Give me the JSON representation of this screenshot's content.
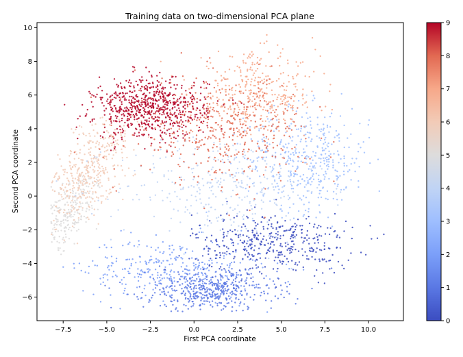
{
  "chart_data": {
    "type": "scatter",
    "title": "Training data on two-dimensional PCA plane",
    "xlabel": "First PCA coordinate",
    "ylabel": "Second PCA coordinate",
    "xlim": [
      -9.0,
      12.0
    ],
    "ylim": [
      -7.4,
      10.3
    ],
    "x_ticks": [
      -7.5,
      -5.0,
      -2.5,
      0.0,
      2.5,
      5.0,
      7.5,
      10.0
    ],
    "x_tick_labels": [
      "−7.5",
      "−5.0",
      "−2.5",
      "0.0",
      "2.5",
      "5.0",
      "7.5",
      "10.0"
    ],
    "y_ticks": [
      -6,
      -4,
      -2,
      0,
      2,
      4,
      6,
      8,
      10
    ],
    "y_tick_labels": [
      "−6",
      "−4",
      "−2",
      "0",
      "2",
      "4",
      "6",
      "8",
      "10"
    ],
    "grid": false,
    "colormap": "coolwarm",
    "colorbar": {
      "range": [
        0,
        9
      ],
      "ticks": [
        0,
        1,
        2,
        3,
        4,
        5,
        6,
        7,
        8,
        9
      ],
      "tick_labels": [
        "0",
        "1",
        "2",
        "3",
        "4",
        "5",
        "6",
        "7",
        "8",
        "9"
      ]
    },
    "clusters": [
      {
        "label": 0,
        "center": [
          4.5,
          -2.8
        ],
        "spread": [
          2.3,
          0.9
        ],
        "share": 0.1
      },
      {
        "label": 1,
        "center": [
          1.0,
          -5.6
        ],
        "spread": [
          1.9,
          0.6
        ],
        "share": 0.11
      },
      {
        "label": 2,
        "center": [
          -1.2,
          -4.3
        ],
        "spread": [
          2.6,
          0.9
        ],
        "share": 0.08
      },
      {
        "label": 3,
        "center": [
          6.5,
          2.2
        ],
        "spread": [
          1.8,
          1.5
        ],
        "share": 0.1
      },
      {
        "label": 4,
        "center": [
          1.5,
          0.5
        ],
        "spread": [
          3.0,
          1.6
        ],
        "share": 0.08
      },
      {
        "label": 5,
        "center": [
          -7.2,
          -1.0
        ],
        "spread": [
          0.7,
          1.3
        ],
        "share": 0.06
      },
      {
        "label": 6,
        "center": [
          -6.0,
          1.5
        ],
        "spread": [
          0.9,
          1.5
        ],
        "share": 0.1
      },
      {
        "label": 7,
        "center": [
          3.5,
          6.0
        ],
        "spread": [
          1.8,
          1.2
        ],
        "share": 0.09
      },
      {
        "label": 8,
        "center": [
          1.5,
          4.0
        ],
        "spread": [
          2.5,
          1.5
        ],
        "share": 0.11
      },
      {
        "label": 9,
        "center": [
          -2.5,
          5.2
        ],
        "spread": [
          1.6,
          0.9
        ],
        "share": 0.17
      }
    ],
    "colors": {
      "0": "#3b4cc0",
      "1": "#5a78e4",
      "2": "#7b9ff9",
      "3": "#9ebeff",
      "4": "#c0d4f5",
      "5": "#dddcdc",
      "6": "#f2cbb7",
      "7": "#f7a889",
      "8": "#e26952",
      "9": "#b40426"
    }
  }
}
